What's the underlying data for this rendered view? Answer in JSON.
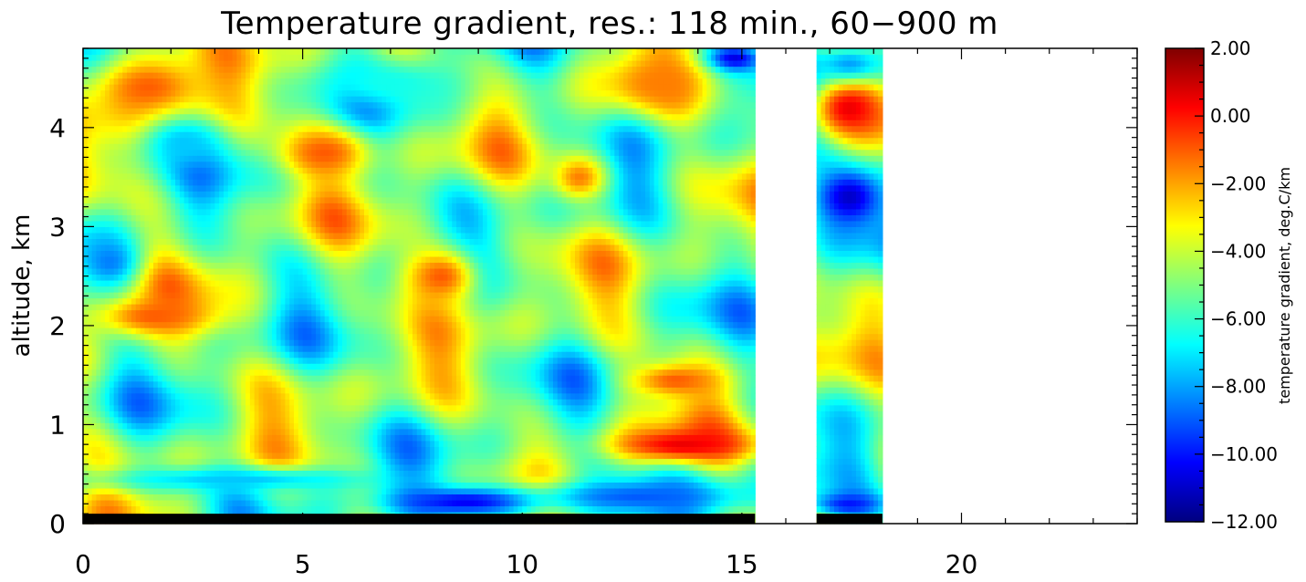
{
  "chart_data": {
    "type": "heatmap",
    "title": "Temperature gradient, res.: 118 min.,  60−900 m",
    "xlabel": "",
    "ylabel": "altitude, km",
    "colorbar_label": "temperature gradient,  deg.C/km",
    "xlim": [
      0,
      24
    ],
    "ylim": [
      0,
      4.8
    ],
    "x_ticks": [
      0,
      5,
      10,
      15,
      20
    ],
    "x_tick_labels": [
      "0",
      "5",
      "10",
      "15",
      "20"
    ],
    "y_ticks": [
      0,
      1,
      2,
      3,
      4
    ],
    "y_tick_labels": [
      "0",
      "1",
      "2",
      "3",
      "4"
    ],
    "colorbar_range": [
      -12,
      2
    ],
    "colorbar_ticks": [
      2,
      0,
      -2,
      -4,
      -6,
      -8,
      -10,
      -12
    ],
    "colorbar_tick_labels": [
      "2.00",
      "0.00",
      "−2.00",
      "−4.00",
      "−6.00",
      "−8.00",
      "−10.00",
      "−12.00"
    ],
    "colormap": [
      "#00007f",
      "#0000ff",
      "#007fff",
      "#00ffff",
      "#7fff7f",
      "#ffff00",
      "#ff7f00",
      "#ff0000",
      "#7f0000"
    ],
    "data_segments": [
      {
        "x_start": 0.0,
        "x_end": 15.3
      },
      {
        "x_start": 16.7,
        "x_end": 18.2
      }
    ],
    "cell_size": {
      "hours": 0.1,
      "km": 0.06
    },
    "features": [
      {
        "x": [
          0.0,
          3.0
        ],
        "y": [
          4.0,
          4.8
        ],
        "value": -1.0
      },
      {
        "x": [
          0.2,
          3.0
        ],
        "y": [
          1.9,
          2.3
        ],
        "value": -1.0
      },
      {
        "x": [
          0.0,
          1.2
        ],
        "y": [
          2.4,
          2.9
        ],
        "value": -8.5
      },
      {
        "x": [
          1.4,
          3.2
        ],
        "y": [
          3.6,
          4.1
        ],
        "value": -7.5
      },
      {
        "x": [
          4.5,
          6.5
        ],
        "y": [
          3.5,
          4.0
        ],
        "value": -1.0
      },
      {
        "x": [
          7.3,
          9.0
        ],
        "y": [
          2.2,
          2.8
        ],
        "value": -1.0
      },
      {
        "x": [
          12.5,
          14.5
        ],
        "y": [
          1.3,
          1.6
        ],
        "value": -1.0
      },
      {
        "x": [
          12.0,
          15.3
        ],
        "y": [
          0.65,
          0.95
        ],
        "value": 0.5
      },
      {
        "x": [
          7.0,
          10.5
        ],
        "y": [
          0.1,
          0.35
        ],
        "value": -10.5
      },
      {
        "x": [
          10.0,
          15.3
        ],
        "y": [
          0.1,
          0.45
        ],
        "value": -9.0
      },
      {
        "x": [
          0.0,
          7.0
        ],
        "y": [
          0.35,
          0.55
        ],
        "value": -7.5
      },
      {
        "x": [
          5.0,
          9.0
        ],
        "y": [
          4.2,
          4.7
        ],
        "value": -6.5
      },
      {
        "x": [
          14.3,
          15.3
        ],
        "y": [
          4.6,
          4.8
        ],
        "value": -11.0
      },
      {
        "x": [
          12.0,
          14.2
        ],
        "y": [
          4.2,
          4.7
        ],
        "value": -1.5
      },
      {
        "x": [
          10.8,
          11.8
        ],
        "y": [
          3.3,
          3.7
        ],
        "value": -1.5
      },
      {
        "x": [
          16.7,
          18.2
        ],
        "y": [
          3.9,
          4.5
        ],
        "value": 0.5
      },
      {
        "x": [
          16.7,
          18.2
        ],
        "y": [
          3.0,
          3.6
        ],
        "value": -11.0
      },
      {
        "x": [
          16.7,
          18.2
        ],
        "y": [
          4.5,
          4.8
        ],
        "value": -8.0
      },
      {
        "x": [
          16.7,
          18.2
        ],
        "y": [
          0.1,
          0.3
        ],
        "value": -10.0
      }
    ]
  }
}
